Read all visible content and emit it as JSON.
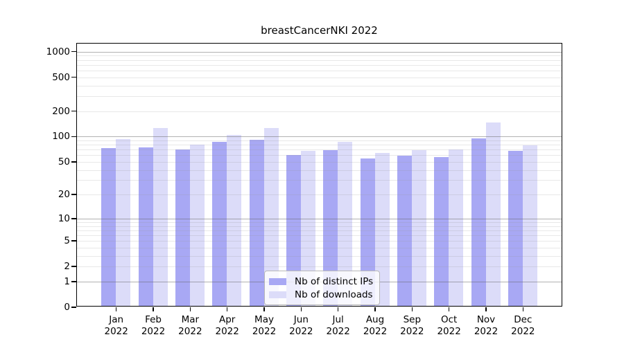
{
  "chart_data": {
    "type": "bar",
    "title": "breastCancerNKI 2022",
    "categories": [
      "Jan",
      "Feb",
      "Mar",
      "Apr",
      "May",
      "Jun",
      "Jul",
      "Aug",
      "Sep",
      "Oct",
      "Nov",
      "Dec"
    ],
    "year_label": "2022",
    "series": [
      {
        "name": "Nb of distinct IPs",
        "color": "#a8a8f4",
        "values": [
          70,
          72,
          68,
          83,
          88,
          58,
          67,
          53,
          57,
          55,
          92,
          65
        ]
      },
      {
        "name": "Nb of downloads",
        "color": "#dcdcf9",
        "values": [
          90,
          122,
          77,
          100,
          121,
          65,
          83,
          61,
          66,
          68,
          142,
          76
        ]
      }
    ],
    "y_axis": {
      "scale": "log10(x+1)",
      "tick_labels": [
        1000,
        500,
        200,
        100,
        50,
        20,
        10,
        5,
        2,
        1,
        0
      ],
      "top_value": 1245
    },
    "grid": {
      "major": [
        1,
        10,
        100,
        1000
      ],
      "minor": [
        2,
        3,
        4,
        5,
        6,
        7,
        8,
        9,
        20,
        30,
        40,
        50,
        60,
        70,
        80,
        90,
        200,
        300,
        400,
        500,
        600,
        700,
        800,
        900
      ]
    },
    "legend_position": "lower center",
    "colors": {
      "axis": "#000000",
      "major_grid": "#b1b1b1",
      "minor_grid": "#e8e8e8",
      "background": "#ffffff"
    }
  }
}
